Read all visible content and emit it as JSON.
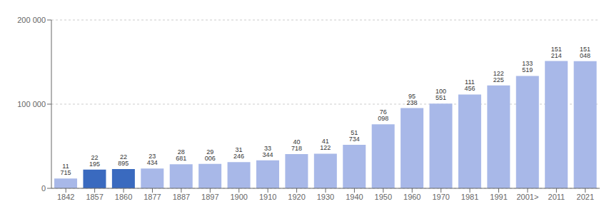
{
  "chart_data": {
    "type": "bar",
    "categories": [
      "1842",
      "1857",
      "1860",
      "1877",
      "1887",
      "1897",
      "1900",
      "1910",
      "1920",
      "1930",
      "1940",
      "1950",
      "1960",
      "1970",
      "1981",
      "1991",
      "2001>",
      "2011",
      "2021"
    ],
    "values": [
      11715,
      22195,
      22895,
      23434,
      28681,
      29006,
      31246,
      33344,
      40718,
      41122,
      51734,
      76098,
      95238,
      100551,
      111456,
      122225,
      133519,
      151214,
      151048
    ],
    "value_labels": [
      "11 715",
      "22 195",
      "22 895",
      "23 434",
      "28 681",
      "29 006",
      "31 246",
      "33 344",
      "40 718",
      "41 122",
      "51 734",
      "76 098",
      "95 238",
      "100 551",
      "111 456",
      "122 225",
      "133 519",
      "151 214",
      "151 048"
    ],
    "colors": [
      "#a8b8e8",
      "#3a6abf",
      "#3a6abf",
      "#a8b8e8",
      "#a8b8e8",
      "#a8b8e8",
      "#a8b8e8",
      "#a8b8e8",
      "#a8b8e8",
      "#a8b8e8",
      "#a8b8e8",
      "#a8b8e8",
      "#a8b8e8",
      "#a8b8e8",
      "#a8b8e8",
      "#a8b8e8",
      "#a8b8e8",
      "#a8b8e8",
      "#a8b8e8"
    ],
    "ylim": [
      0,
      200000
    ],
    "yticks": [
      0,
      {
        "value": 100000,
        "label": "100 000"
      },
      {
        "value": 200000,
        "label": "200 000"
      }
    ],
    "grid": true,
    "data_labels": true
  }
}
